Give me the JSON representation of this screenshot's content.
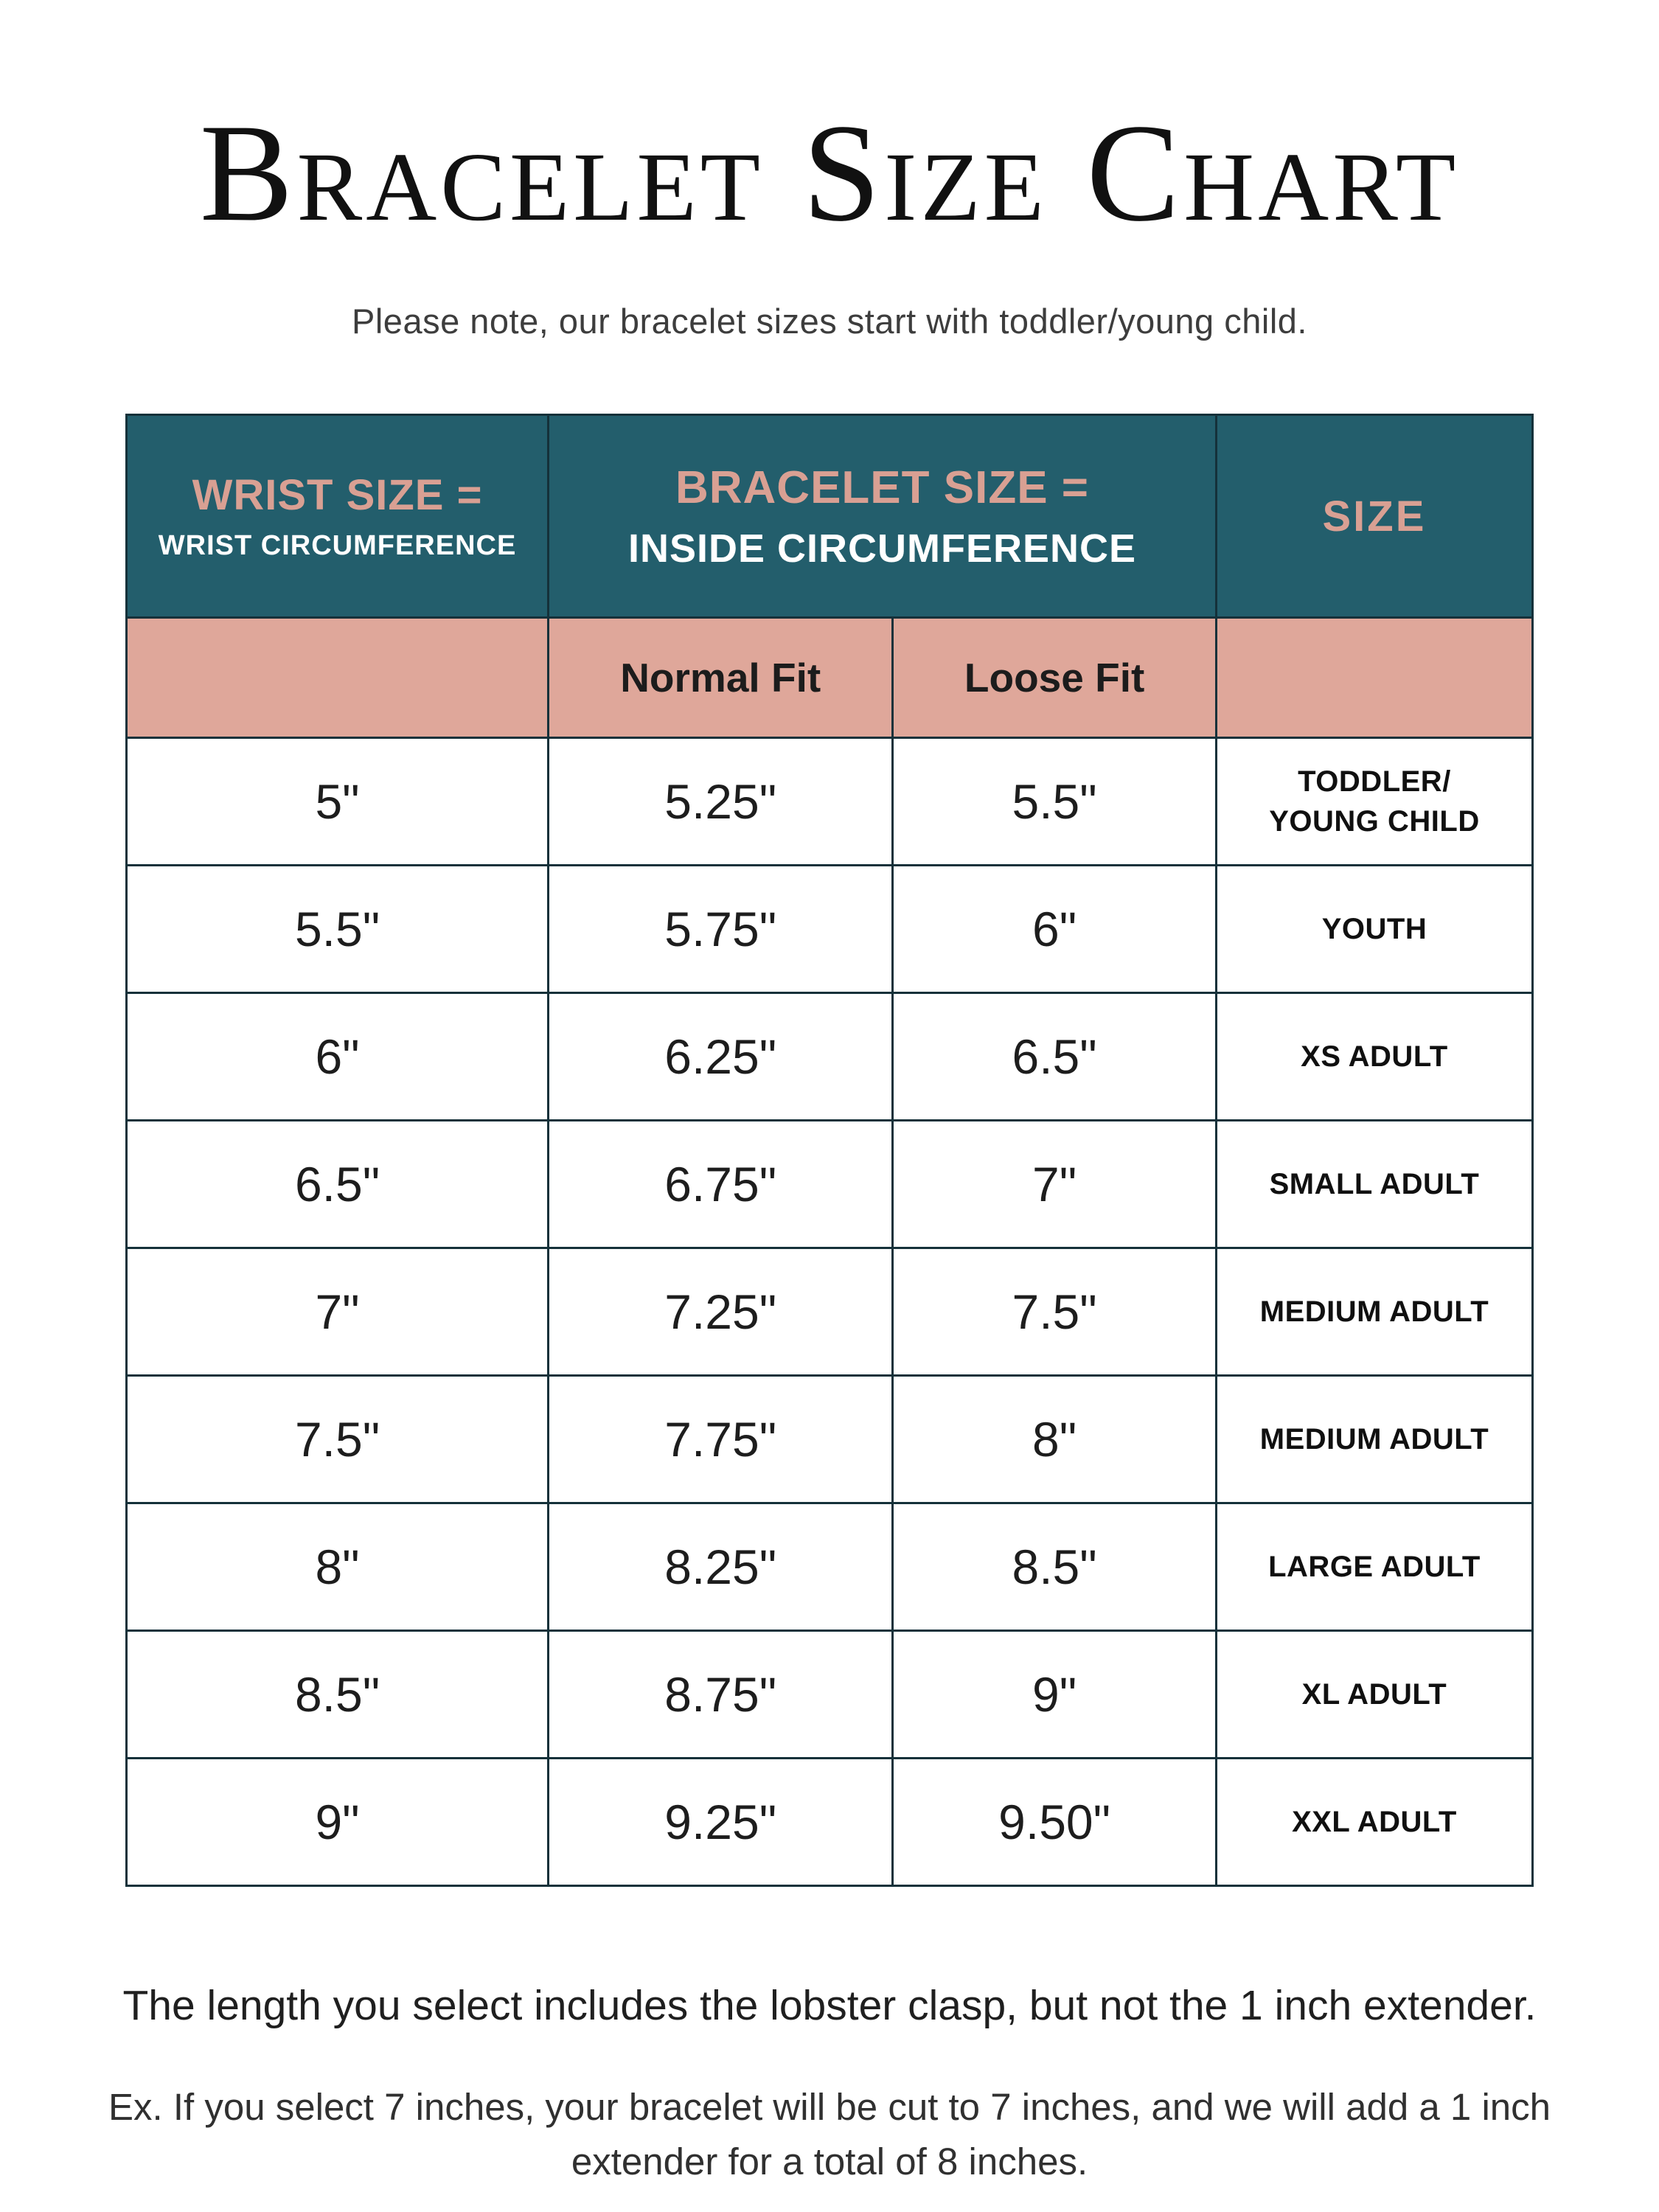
{
  "page": {
    "title": "Bracelet Size Chart",
    "subtitle": "Please note, our bracelet sizes start with toddler/young child.",
    "footer_line1": "The length you select includes the lobster clasp, but not the 1 inch extender.",
    "footer_line2": "Ex. If you select 7 inches, your bracelet will be cut to 7 inches, and we will add a 1 inch extender for a total of 8 inches."
  },
  "colors": {
    "header_teal": "#235e6c",
    "header_pink_text": "#d9a093",
    "salmon_row": "#dfa79a",
    "border": "#15313a",
    "background": "#ffffff"
  },
  "table": {
    "header": {
      "wrist_line1": "WRIST SIZE =",
      "wrist_line2": "WRIST CIRCUMFERENCE",
      "bracelet_line1": "BRACELET SIZE =",
      "bracelet_line2": "INSIDE CIRCUMFERENCE",
      "size_label": "SIZE",
      "normal_fit": "Normal Fit",
      "loose_fit": "Loose Fit"
    },
    "rows": [
      {
        "wrist": "5\"",
        "normal": "5.25\"",
        "loose": "5.5\"",
        "size": "TODDLER/\nYOUNG CHILD"
      },
      {
        "wrist": "5.5\"",
        "normal": "5.75\"",
        "loose": "6\"",
        "size": "YOUTH"
      },
      {
        "wrist": "6\"",
        "normal": "6.25\"",
        "loose": "6.5\"",
        "size": "XS ADULT"
      },
      {
        "wrist": "6.5\"",
        "normal": "6.75\"",
        "loose": "7\"",
        "size": "SMALL ADULT"
      },
      {
        "wrist": "7\"",
        "normal": "7.25\"",
        "loose": "7.5\"",
        "size": "MEDIUM ADULT"
      },
      {
        "wrist": "7.5\"",
        "normal": "7.75\"",
        "loose": "8\"",
        "size": "MEDIUM ADULT"
      },
      {
        "wrist": "8\"",
        "normal": "8.25\"",
        "loose": "8.5\"",
        "size": "LARGE ADULT"
      },
      {
        "wrist": "8.5\"",
        "normal": "8.75\"",
        "loose": "9\"",
        "size": "XL ADULT"
      },
      {
        "wrist": "9\"",
        "normal": "9.25\"",
        "loose": "9.50\"",
        "size": "XXL ADULT"
      }
    ]
  }
}
